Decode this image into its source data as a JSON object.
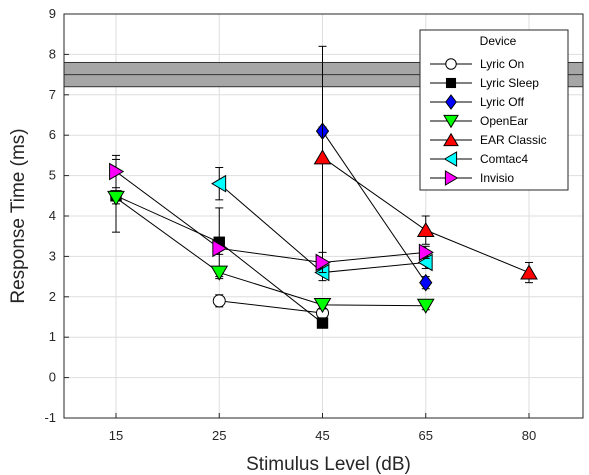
{
  "chart_data": {
    "type": "line",
    "xlabel": "Stimulus Level (dB)",
    "ylabel": "Response Time (ms)",
    "categories": [
      "15",
      "25",
      "45",
      "65",
      "80"
    ],
    "ylim": [
      -1,
      9
    ],
    "yticks": [
      "-1",
      "0",
      "1",
      "2",
      "3",
      "4",
      "5",
      "6",
      "7",
      "8",
      "9"
    ],
    "grid": true,
    "legend_title": "Device",
    "legend_position": "top-right",
    "reference_band": {
      "y_low": 7.2,
      "y_high": 7.8,
      "y_mid": 7.5,
      "color": "#a6a6a6"
    },
    "series": [
      {
        "name": "Lyric On",
        "marker": "circle",
        "color": "#ffffff",
        "points": [
          {
            "x": "25",
            "y": 1.9,
            "err": 0.15
          },
          {
            "x": "45",
            "y": 1.6,
            "err": 0.1
          }
        ]
      },
      {
        "name": "Lyric Sleep",
        "marker": "square",
        "color": "#000000",
        "points": [
          {
            "x": "15",
            "y": 4.5,
            "err": 0.9
          },
          {
            "x": "25",
            "y": 3.35,
            "err": 0.85
          },
          {
            "x": "45",
            "y": 1.35,
            "err": 0.1
          }
        ]
      },
      {
        "name": "Lyric Off",
        "marker": "diamond",
        "color": "#0000ff",
        "points": [
          {
            "x": "45",
            "y": 6.1,
            "err": 0.1
          },
          {
            "x": "65",
            "y": 2.35,
            "err": 0.15
          }
        ]
      },
      {
        "name": "OpenEar",
        "marker": "triangle-down",
        "color": "#00ff00",
        "points": [
          {
            "x": "15",
            "y": 4.45,
            "err": 0.15
          },
          {
            "x": "25",
            "y": 2.6,
            "err": 0.15
          },
          {
            "x": "45",
            "y": 1.8,
            "err": 0.1
          },
          {
            "x": "65",
            "y": 1.78,
            "err": 0.1
          }
        ]
      },
      {
        "name": "EAR Classic",
        "marker": "triangle-up",
        "color": "#ff0000",
        "points": [
          {
            "x": "45",
            "y": 5.45,
            "err": 2.75
          },
          {
            "x": "65",
            "y": 3.65,
            "err": 0.35
          },
          {
            "x": "80",
            "y": 2.6,
            "err": 0.25
          }
        ]
      },
      {
        "name": "Comtac4",
        "marker": "triangle-left",
        "color": "#00ffff",
        "points": [
          {
            "x": "25",
            "y": 4.8,
            "err": 0.4
          },
          {
            "x": "45",
            "y": 2.6,
            "err": 0.2
          },
          {
            "x": "65",
            "y": 2.85,
            "err": 0.15
          }
        ]
      },
      {
        "name": "Invisio",
        "marker": "triangle-right",
        "color": "#ff00ff",
        "points": [
          {
            "x": "15",
            "y": 5.1,
            "err": 0.4
          },
          {
            "x": "25",
            "y": 3.2,
            "err": 0.15
          },
          {
            "x": "45",
            "y": 2.85,
            "err": 0.25
          },
          {
            "x": "65",
            "y": 3.1,
            "err": 0.15
          }
        ]
      }
    ]
  }
}
